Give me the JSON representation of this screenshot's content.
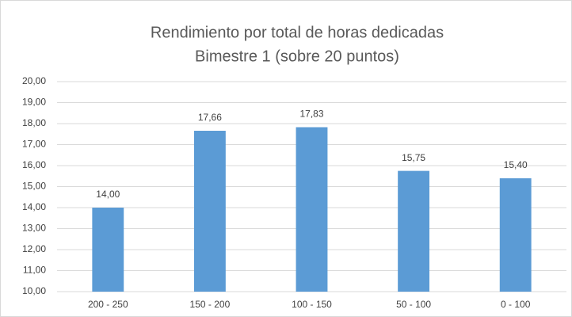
{
  "chart_data": {
    "type": "bar",
    "title": "Rendimiento por total de horas dedicadas",
    "subtitle": "Bimestre 1 (sobre 20 puntos)",
    "categories": [
      "200 - 250",
      "150 - 200",
      "100 - 150",
      "50 - 100",
      "0 - 100"
    ],
    "values": [
      14.0,
      17.66,
      17.83,
      15.75,
      15.4
    ],
    "value_labels": [
      "14,00",
      "17,66",
      "17,83",
      "15,75",
      "15,40"
    ],
    "color": "#5b9bd5",
    "ylim": [
      10,
      20
    ],
    "yticks": [
      {
        "value": 10,
        "label": "10,00"
      },
      {
        "value": 11,
        "label": "11,00"
      },
      {
        "value": 12,
        "label": "12,00"
      },
      {
        "value": 13,
        "label": "13,00"
      },
      {
        "value": 14,
        "label": "14,00"
      },
      {
        "value": 15,
        "label": "15,00"
      },
      {
        "value": 16,
        "label": "16,00"
      },
      {
        "value": 17,
        "label": "17,00"
      },
      {
        "value": 18,
        "label": "18,00"
      },
      {
        "value": 19,
        "label": "19,00"
      },
      {
        "value": 20,
        "label": "20,00"
      }
    ],
    "grid": true
  }
}
